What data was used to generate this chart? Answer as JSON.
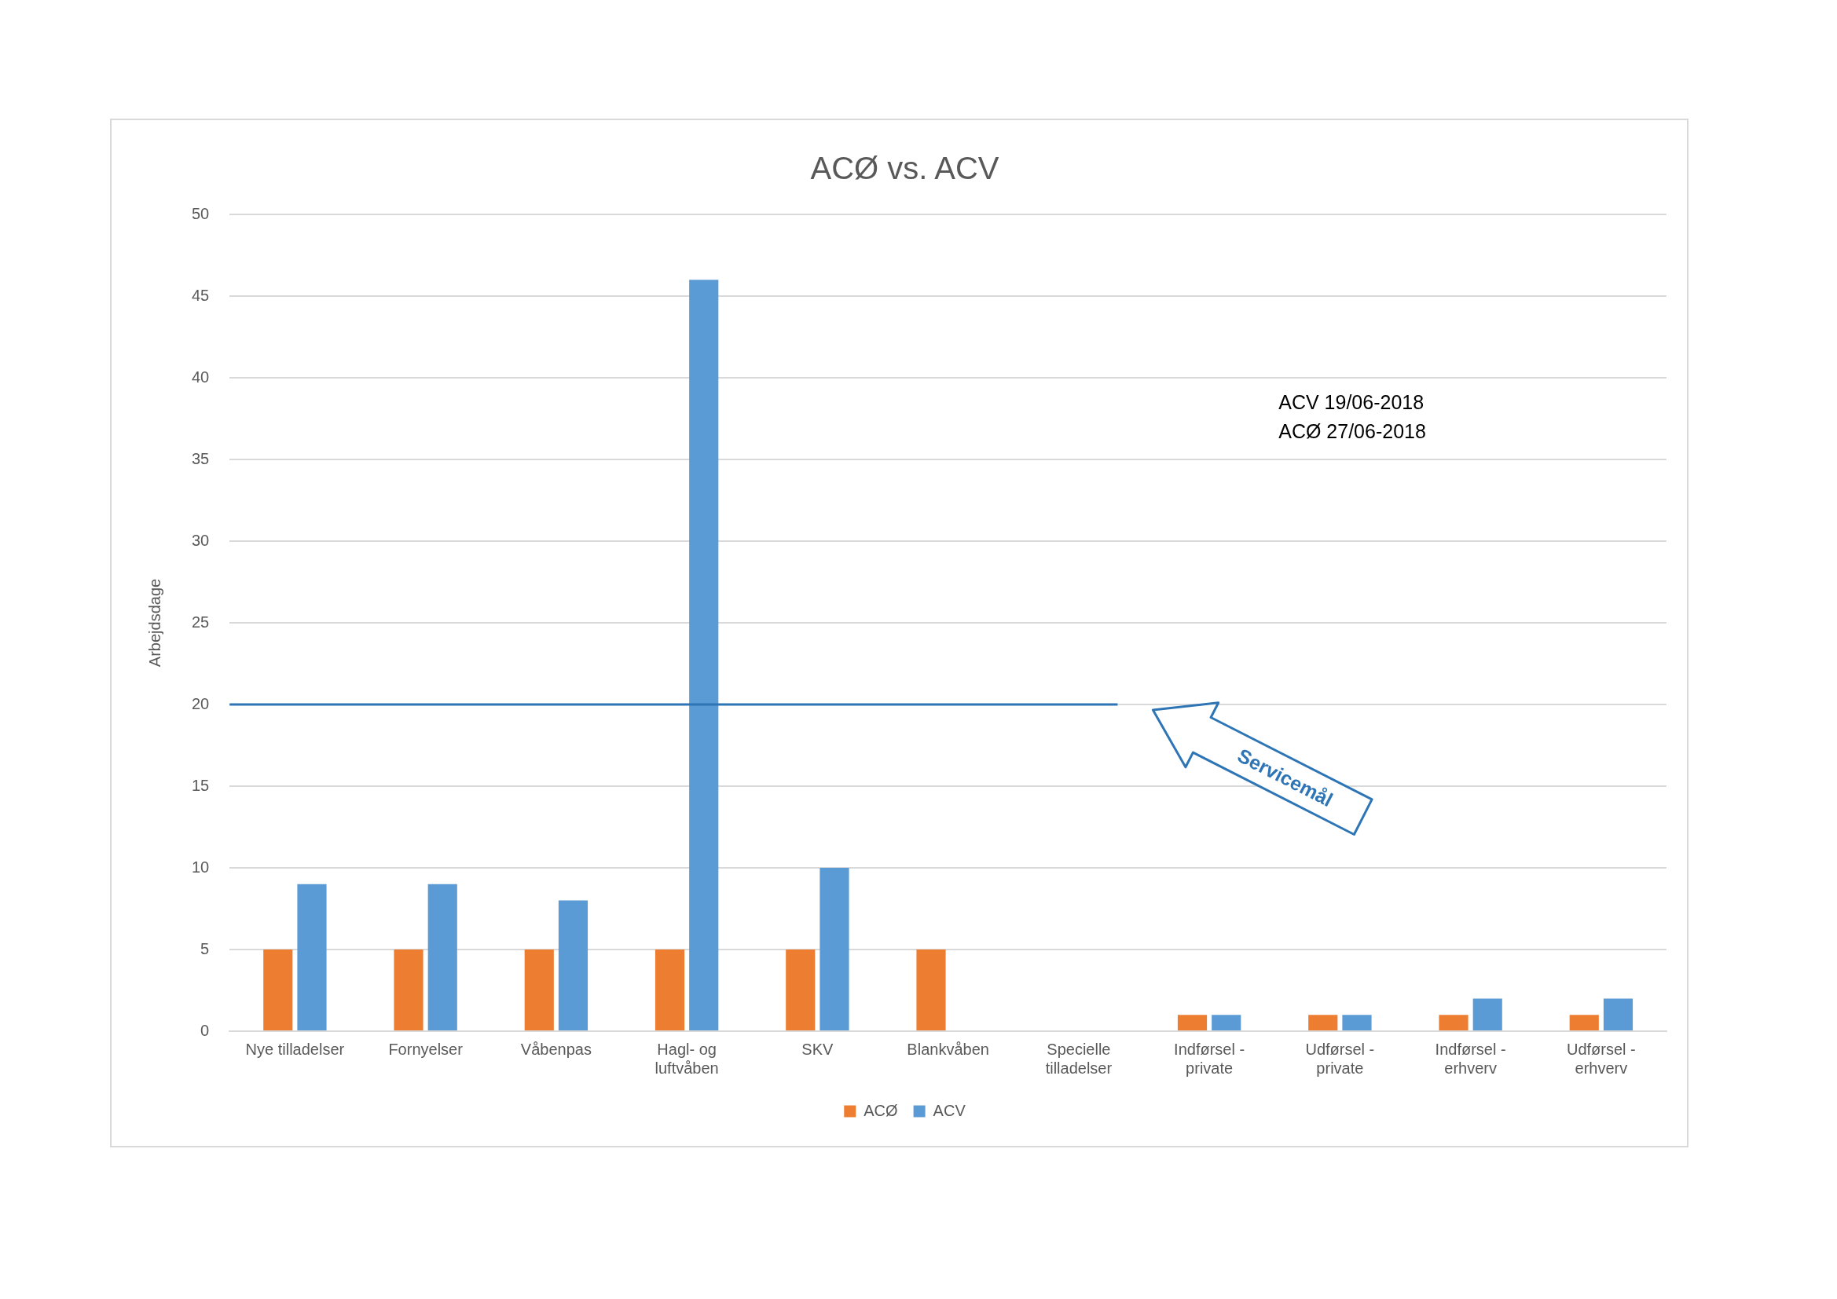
{
  "chart_data": {
    "type": "bar",
    "title": "ACØ vs. ACV",
    "ylabel": "Arbejdsdage",
    "categories": [
      "Nye tilladelser",
      "Fornyelser",
      "Våbenpas",
      "Hagl- og luftvåben",
      "SKV",
      "Blankvåben",
      "Specielle tilladelser",
      "Indførsel - private",
      "Udførsel - private",
      "Indførsel - erhverv",
      "Udførsel - erhverv"
    ],
    "series": [
      {
        "name": "ACØ",
        "color": "#ed7d31",
        "values": [
          5,
          5,
          5,
          5,
          5,
          5,
          null,
          1,
          1,
          1,
          1
        ]
      },
      {
        "name": "ACV",
        "color": "#5b9bd5",
        "values": [
          9,
          9,
          8,
          46,
          10,
          null,
          null,
          1,
          1,
          2,
          2
        ]
      }
    ],
    "ylim": [
      0,
      50
    ],
    "yticks": [
      0,
      5,
      10,
      15,
      20,
      25,
      30,
      35,
      40,
      45,
      50
    ],
    "grid": "y",
    "legend": "bottom",
    "ref_lines": [
      {
        "axis": "y",
        "value": 20,
        "label": "Servicemål",
        "color": "#2e75b6"
      }
    ],
    "annotations": [
      "ACV 19/06-2018",
      "ACØ 27/06-2018"
    ]
  }
}
